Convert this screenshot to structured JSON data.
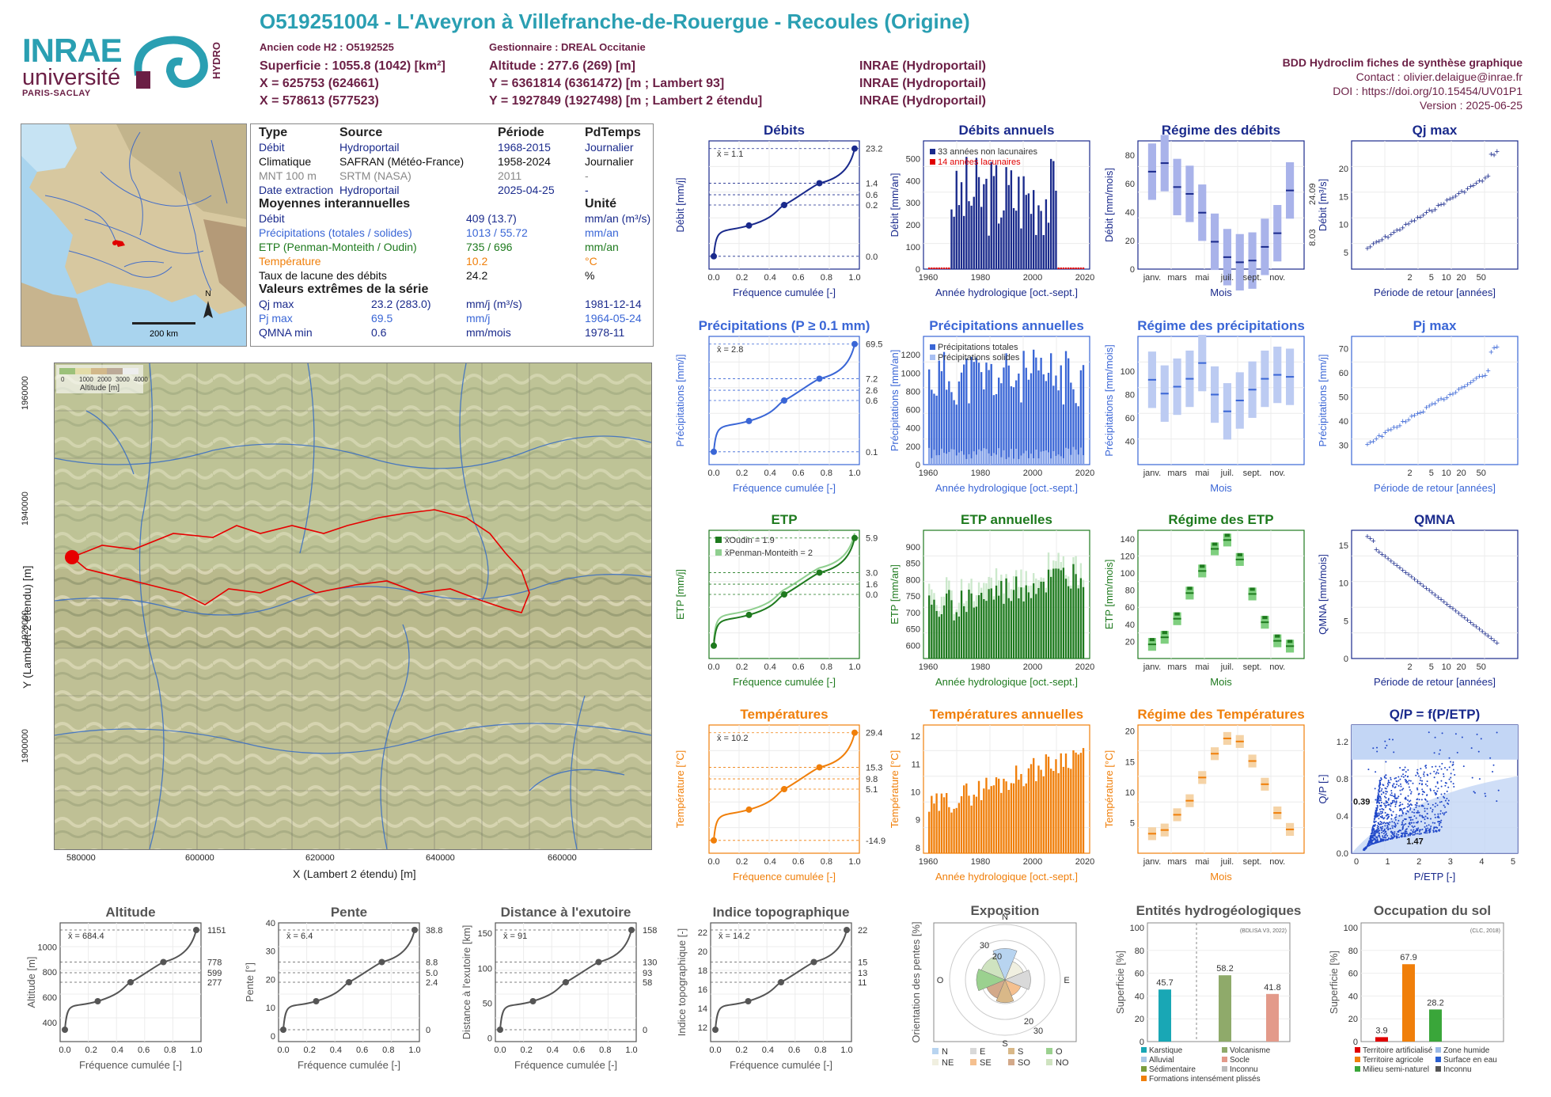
{
  "header": {
    "title": "O519251004 - L'Aveyron à Villefranche-de-Rouergue - Recoules (Origine)",
    "ancien_code": "Ancien code H2 : O5192525",
    "gestionnaire": "Gestionnaire : DREAL Occitanie",
    "superficie": "Superficie : 1055.8 (1042) [km²]",
    "altitude": "Altitude : 277.6 (269) [m]",
    "x93": "X = 625753 (624661)",
    "y93": "Y = 6361814 (6361472) [m ; Lambert 93]",
    "x2": "X = 578613 (577523)",
    "y2": "Y = 1927849 (1927498) [m ; Lambert 2 étendu]",
    "source1": "INRAE (Hydroportail)",
    "source2": "INRAE (Hydroportail)",
    "source3": "INRAE (Hydroportail)"
  },
  "logos": {
    "inrae": "INRAE",
    "universite": "université",
    "paris_saclay": "PARIS-SACLAY",
    "hydro": "HYDRO"
  },
  "credits": {
    "line1": "BDD Hydroclim fiches de synthèse graphique",
    "line2": "Contact : olivier.delaigue@inrae.fr",
    "line3": "DOI : https://doi.org/10.15454/UV01P1",
    "line4": "Version : 2025-06-25"
  },
  "inset_map": {
    "scale": "200 km",
    "north": "N"
  },
  "table": {
    "headers": {
      "type": "Type",
      "source": "Source",
      "periode": "Période",
      "pdtemps": "PdTemps"
    },
    "rows": [
      {
        "type": "Débit",
        "source": "Hydroportail",
        "periode": "1968-2015",
        "pdtemps": "Journalier",
        "color": "#1a2a8c"
      },
      {
        "type": "Climatique",
        "source": "SAFRAN (Météo-France)",
        "periode": "1958-2024",
        "pdtemps": "Journalier",
        "color": "#111111"
      },
      {
        "type": "MNT 100 m",
        "source": "SRTM (NASA)",
        "periode": "2011",
        "pdtemps": "-",
        "color": "#888888"
      },
      {
        "type": "Date extraction",
        "source": "Hydroportail",
        "periode": "2025-04-25",
        "pdtemps": "-",
        "color": "#1a2a8c"
      }
    ],
    "moy_title": "Moyennes interannuelles",
    "unite": "Unité",
    "moy": [
      {
        "label": "Débit",
        "value": "409 (13.7)",
        "unit": "mm/an (m³/s)",
        "color": "#1a2a8c"
      },
      {
        "label": "Précipitations (totales / solides)",
        "value": "1013 / 55.72",
        "unit": "mm/an",
        "color": "#3a66d6"
      },
      {
        "label": "ETP (Penman-Monteith / Oudin)",
        "value": "735 / 696",
        "unit": "mm/an",
        "color": "#1e7a1e"
      },
      {
        "label": "Température",
        "value": "10.2",
        "unit": "°C",
        "color": "#f07f0a"
      },
      {
        "label": "Taux de lacune des débits",
        "value": "24.2",
        "unit": "%",
        "color": "#111111"
      }
    ],
    "ext_title": "Valeurs extrêmes de la série",
    "ext": [
      {
        "label": "Qj max",
        "value": "23.2 (283.0)",
        "unit": "mm/j (m³/s)",
        "date": "1981-12-14",
        "color": "#1a2a8c"
      },
      {
        "label": "Pj max",
        "value": "69.5",
        "unit": "mm/j",
        "date": "1964-05-24",
        "color": "#3a66d6"
      },
      {
        "label": "QMNA min",
        "value": "0.6",
        "unit": "mm/mois",
        "date": "1978-11",
        "color": "#1a2a8c"
      }
    ]
  },
  "basin_map": {
    "xlabel": "X (Lambert 2 étendu) [m]",
    "ylabel": "Y (Lambert 2 étendu) [m]",
    "xticks": [
      "580000",
      "600000",
      "620000",
      "640000",
      "660000"
    ],
    "yticks": [
      "1960000",
      "1940000",
      "1920000",
      "1900000"
    ],
    "legend_title": "Altitude [m]",
    "legend_ticks": [
      "0",
      "1000",
      "2000",
      "3000",
      "4000"
    ]
  },
  "chart_data": [
    {
      "id": "debits",
      "type": "line",
      "title": "Débits",
      "xlabel": "Fréquence cumulée [-]",
      "ylabel": "Débit [mm/j]",
      "mean_label": "x̄ = 1.1",
      "right_ticks": [
        "23.2",
        "1.4",
        "0.6",
        "0.2",
        "0.0"
      ],
      "x": [
        0,
        0.25,
        0.5,
        0.75,
        1
      ],
      "y": [
        0.0,
        0.2,
        0.6,
        1.4,
        23.2
      ]
    },
    {
      "id": "debits_annuels",
      "type": "bar",
      "title": "Débits annuels",
      "xlabel": "Année hydrologique [oct.-sept.]",
      "ylabel": "Débit [mm/an]",
      "legend": [
        "33 années non lacunaires",
        "14 années lacunaires"
      ]
    },
    {
      "id": "regime_debits",
      "type": "bar",
      "title": "Régime des débits",
      "xlabel": "Mois",
      "ylabel": "Débit [mm/mois]",
      "categories": [
        "janv.",
        "févr.",
        "mars",
        "avr.",
        "mai",
        "juin",
        "juil.",
        "août",
        "sept.",
        "oct.",
        "nov.",
        "déc."
      ],
      "values": [
        57,
        62,
        48,
        44,
        33,
        16,
        7,
        4,
        5,
        13,
        21,
        46
      ],
      "right_ticks": [
        "24.09",
        "8.03"
      ]
    },
    {
      "id": "qj_max",
      "type": "scatter",
      "title": "Qj max",
      "xlabel": "Période de retour [années]",
      "ylabel": "Débit [m³/s]"
    },
    {
      "id": "precip",
      "type": "line",
      "title": "Précipitations (P ≥ 0.1 mm)",
      "xlabel": "Fréquence cumulée [-]",
      "ylabel": "Précipitations [mm/j]",
      "mean_label": "x̄ = 2.8",
      "right_ticks": [
        "69.5",
        "7.2",
        "2.6",
        "0.6",
        "0.1"
      ],
      "x": [
        0,
        0.25,
        0.5,
        0.75,
        1
      ],
      "y": [
        0.1,
        0.6,
        2.6,
        7.2,
        69.5
      ]
    },
    {
      "id": "precip_annuelles",
      "type": "bar",
      "title": "Précipitations annuelles",
      "xlabel": "Année hydrologique [oct.-sept.]",
      "ylabel": "Précipitations [mm/an]",
      "legend": [
        "Précipitations totales",
        "Précipitations solides"
      ]
    },
    {
      "id": "regime_precip",
      "type": "bar",
      "title": "Régime des précipitations",
      "xlabel": "Mois",
      "ylabel": "Précipitations [mm/mois]",
      "values": [
        86,
        72,
        79,
        87,
        103,
        71,
        54,
        65,
        76,
        87,
        91,
        89
      ]
    },
    {
      "id": "pj_max",
      "type": "scatter",
      "title": "Pj max",
      "xlabel": "Période de retour [années]",
      "ylabel": "Précipitations [mm/j]"
    },
    {
      "id": "etp",
      "type": "line",
      "title": "ETP",
      "xlabel": "Fréquence cumulée [-]",
      "ylabel": "ETP [mm/j]",
      "legend": [
        "x̄Oudin = 1.9",
        "x̄Penman-Monteith = 2"
      ],
      "right_ticks": [
        "5.9",
        "3.0",
        "1.6",
        "0.0"
      ],
      "x": [
        0,
        0.25,
        0.5,
        0.75,
        1
      ],
      "y": [
        0.0,
        0.7,
        1.6,
        3.0,
        5.9
      ]
    },
    {
      "id": "etp_annuelles",
      "type": "bar",
      "title": "ETP annuelles",
      "xlabel": "Année hydrologique [oct.-sept.]",
      "ylabel": "ETP [mm/an]"
    },
    {
      "id": "regime_etp",
      "type": "bar",
      "title": "Régime des ETP",
      "xlabel": "Mois",
      "ylabel": "ETP [mm/mois]",
      "values": [
        16,
        24,
        45,
        74,
        99,
        124,
        134,
        112,
        73,
        41,
        20,
        14
      ]
    },
    {
      "id": "qmna",
      "type": "scatter",
      "title": "QMNA",
      "xlabel": "Période de retour [années]",
      "ylabel": "QMNA [mm/mois]"
    },
    {
      "id": "temp",
      "type": "line",
      "title": "Températures",
      "xlabel": "Fréquence cumulée [-]",
      "ylabel": "Température [°C]",
      "mean_label": "x̄ = 10.2",
      "right_ticks": [
        "29.4",
        "15.3",
        "9.8",
        "5.1",
        "-14.9"
      ],
      "x": [
        0,
        0.25,
        0.5,
        0.75,
        1
      ],
      "y": [
        -14.9,
        5.1,
        9.8,
        15.3,
        29.4
      ]
    },
    {
      "id": "temp_annuelles",
      "type": "bar",
      "title": "Températures annuelles",
      "xlabel": "Année hydrologique [oct.-sept.]",
      "ylabel": "Température [°C]"
    },
    {
      "id": "regime_temp",
      "type": "bar",
      "title": "Régime des Températures",
      "xlabel": "Mois",
      "ylabel": "Température [°C]",
      "values": [
        3.2,
        3.8,
        6.3,
        8.6,
        12.4,
        16.3,
        18.8,
        18.3,
        15.1,
        11.3,
        6.6,
        3.9
      ]
    },
    {
      "id": "qp",
      "type": "scatter",
      "title": "Q/P = f(P/ETP)",
      "xlabel": "P/ETP [-]",
      "ylabel": "Q/P [-]",
      "labels": [
        "0.39",
        "1.47"
      ]
    },
    {
      "id": "altitude",
      "type": "line",
      "title": "Altitude",
      "xlabel": "Fréquence cumulée [-]",
      "ylabel": "Altitude [m]",
      "mean_label": "x̄ = 684.4",
      "right_ticks": [
        "1151",
        "778",
        "599",
        "277"
      ],
      "x": [
        0,
        0.25,
        0.5,
        0.75,
        1
      ],
      "y": [
        277,
        599,
        667,
        778,
        1151
      ]
    },
    {
      "id": "pente",
      "type": "line",
      "title": "Pente",
      "xlabel": "Fréquence cumulée [-]",
      "ylabel": "Pente [°]",
      "mean_label": "x̄ = 6.4",
      "right_ticks": [
        "38.8",
        "8.8",
        "5.0",
        "2.4",
        "0"
      ],
      "x": [
        0,
        0.25,
        0.5,
        0.75,
        1
      ],
      "y": [
        0,
        2.4,
        5.0,
        8.8,
        38.8
      ]
    },
    {
      "id": "distance",
      "type": "line",
      "title": "Distance à l'exutoire",
      "xlabel": "Fréquence cumulée [-]",
      "ylabel": "Distance à l'exutoire [km]",
      "mean_label": "x̄ = 91",
      "right_ticks": [
        "158",
        "130",
        "93",
        "58",
        "0"
      ],
      "x": [
        0,
        0.25,
        0.5,
        0.75,
        1
      ],
      "y": [
        0,
        58,
        93,
        130,
        158
      ]
    },
    {
      "id": "indice",
      "type": "line",
      "title": "Indice topographique",
      "xlabel": "Fréquence cumulée [-]",
      "ylabel": "Indice topographique [-]",
      "mean_label": "x̄ = 14.2",
      "right_ticks": [
        "22",
        "15",
        "13",
        "11"
      ],
      "x": [
        0,
        0.25,
        0.5,
        0.75,
        1
      ],
      "y": [
        11,
        13.3,
        14,
        15,
        22
      ]
    },
    {
      "id": "exposition",
      "type": "pie",
      "title": "Exposition",
      "ylabel": "Orientation des pentes [%]",
      "categories": [
        "N",
        "NE",
        "E",
        "SE",
        "S",
        "SO",
        "O",
        "NO"
      ]
    },
    {
      "id": "hydrogeo",
      "type": "bar",
      "title": "Entités hydrogéologiques",
      "ylabel": "Superficie [%]",
      "note": "(BDLISA V3, 2022)",
      "values": [
        45.7,
        58.2,
        41.8
      ],
      "legend": [
        "Karstique",
        "Volcanisme",
        "Alluvial",
        "Socle",
        "Sédimentaire",
        "Inconnu",
        "Formations intensément plissés"
      ]
    },
    {
      "id": "occupation",
      "type": "bar",
      "title": "Occupation du sol",
      "ylabel": "Superficie [%]",
      "note": "(CLC, 2018)",
      "values": [
        3.9,
        67.9,
        28.2
      ],
      "legend": [
        "Territoire artificialisé",
        "Zone humide",
        "Territoire agricole",
        "Surface en eau",
        "Milieu semi-naturel",
        "Inconnu"
      ]
    }
  ]
}
